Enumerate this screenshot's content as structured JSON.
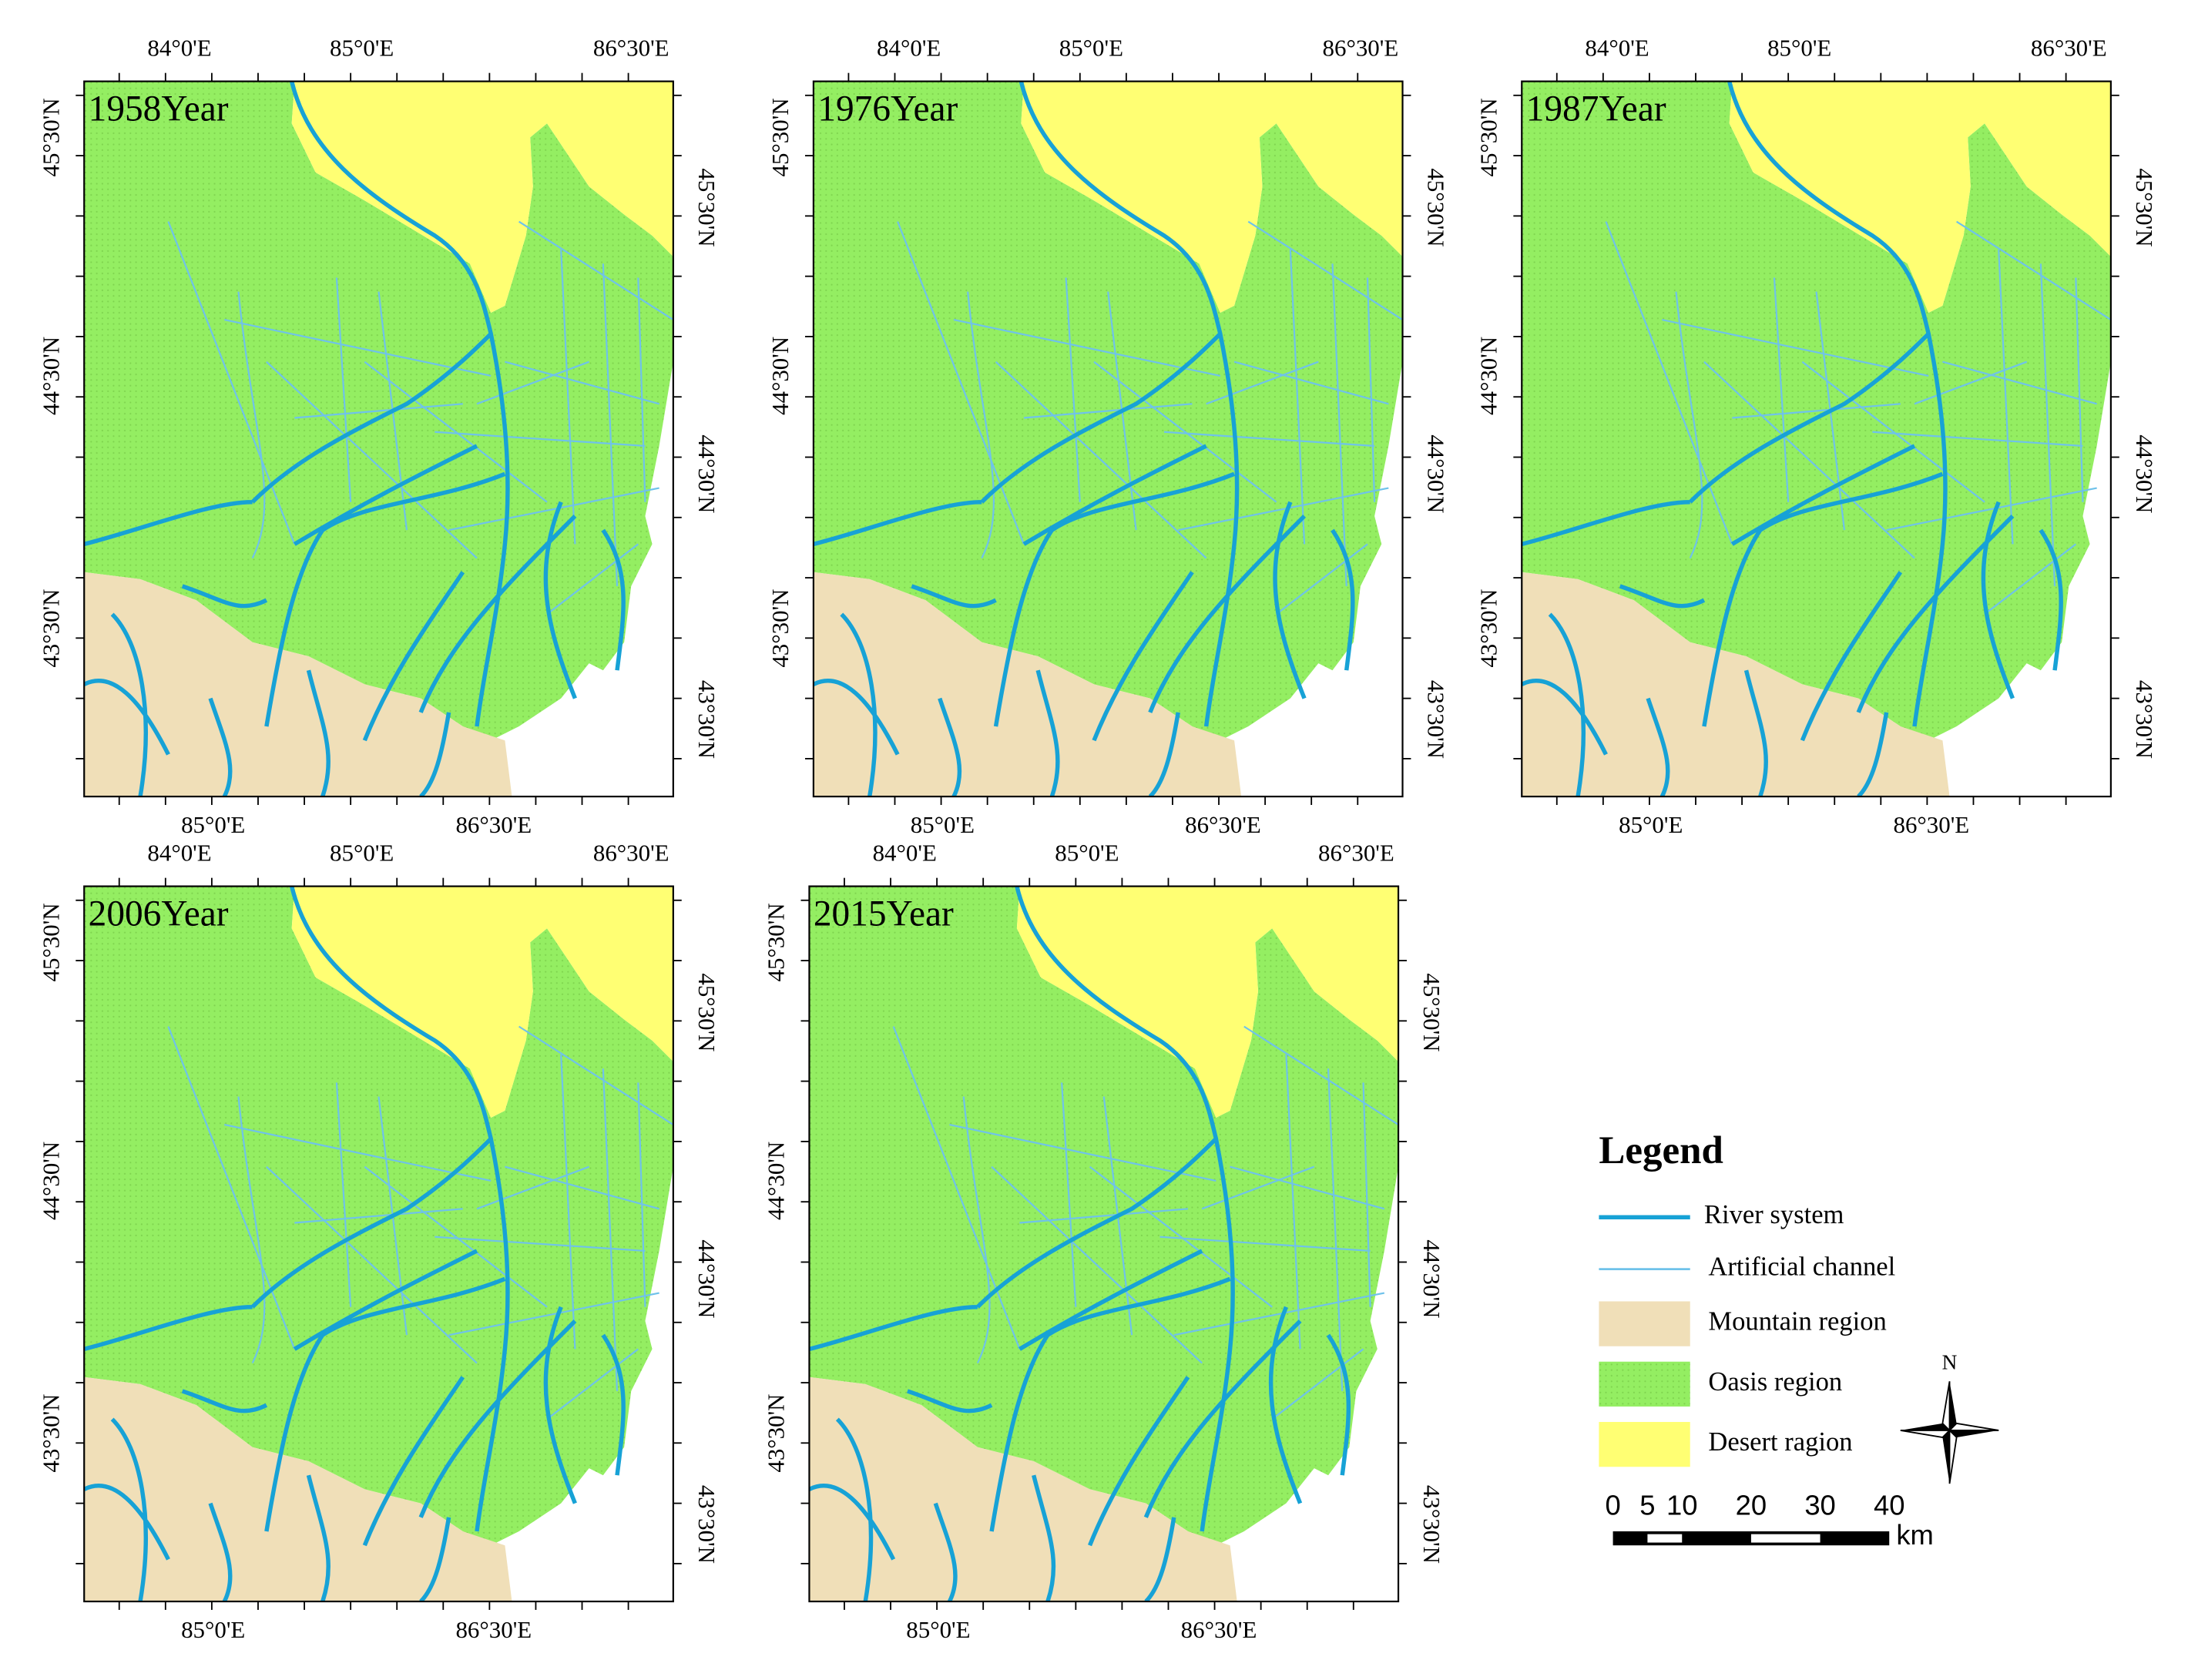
{
  "panels": [
    {
      "title": "1958Year",
      "top_labels": [
        "84°0'E",
        "85°0'E",
        "86°30'E"
      ],
      "bottom_labels": [
        "85°0'E",
        "86°30'E"
      ],
      "left_labels": [
        "45°30'N",
        "44°30'N",
        "43°30'N"
      ],
      "right_labels": [
        "45°30'N",
        "44°30'N",
        "43°30'N"
      ]
    },
    {
      "title": "1976Year",
      "top_labels": [
        "84°0'E",
        "85°0'E",
        "86°30'E"
      ],
      "bottom_labels": [
        "85°0'E",
        "86°30'E"
      ],
      "left_labels": [
        "45°30'N",
        "44°30'N",
        "43°30'N"
      ],
      "right_labels": [
        "45°30'N",
        "44°30'N",
        "43°30'N"
      ]
    },
    {
      "title": "1987Year",
      "top_labels": [
        "84°0'E",
        "85°0'E",
        "86°30'E"
      ],
      "bottom_labels": [
        "85°0'E",
        "86°30'E"
      ],
      "left_labels": [
        "45°30'N",
        "44°30'N",
        "43°30'N"
      ],
      "right_labels": [
        "45°30'N",
        "44°30'N",
        "43°30'N"
      ]
    },
    {
      "title": "2006Year",
      "top_labels": [
        "84°0'E",
        "85°0'E",
        "86°30'E"
      ],
      "bottom_labels": [
        "85°0'E",
        "86°30'E"
      ],
      "left_labels": [
        "45°30'N",
        "44°30'N",
        "43°30'N"
      ],
      "right_labels": [
        "45°30'N",
        "44°30'N",
        "43°30'N"
      ]
    },
    {
      "title": "2015Year",
      "top_labels": [
        "84°0'E",
        "85°0'E",
        "86°30'E"
      ],
      "bottom_labels": [
        "85°0'E",
        "86°30'E"
      ],
      "left_labels": [
        "45°30'N",
        "44°30'N",
        "43°30'N"
      ],
      "right_labels": [
        "45°30'N",
        "44°30'N",
        "43°30'N"
      ]
    }
  ],
  "legend": {
    "title": "Legend",
    "items": [
      "River system",
      "Artificial channel",
      "Mountain region",
      "Oasis region",
      "Desert ragion"
    ]
  },
  "north": "N",
  "scale_bar": {
    "ticks": [
      0,
      5,
      10,
      20,
      30,
      40
    ],
    "unit": "km"
  }
}
